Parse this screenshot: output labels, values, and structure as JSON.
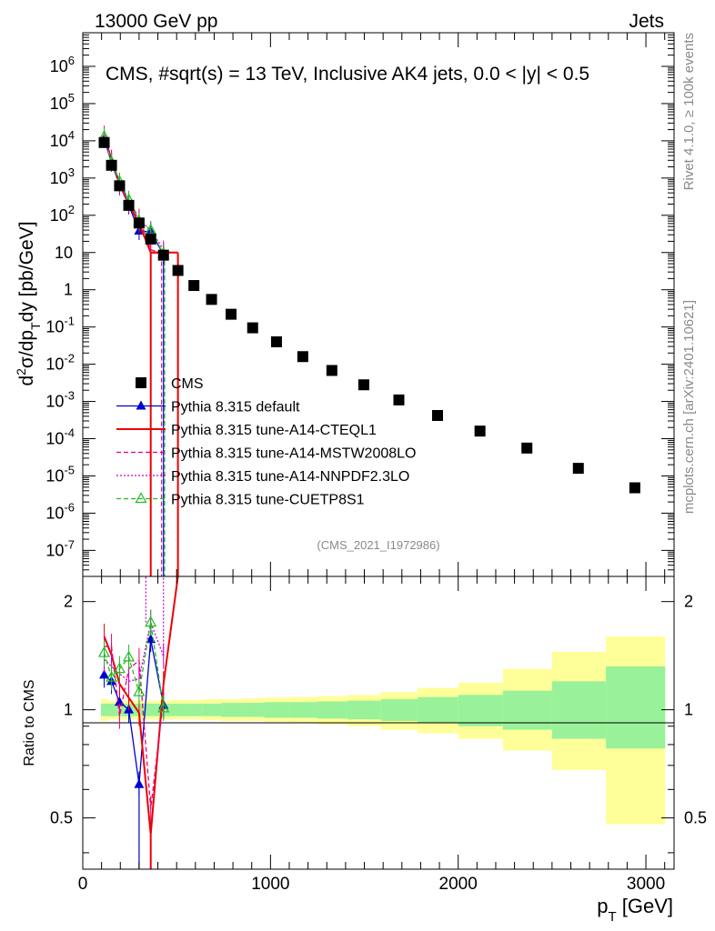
{
  "header": {
    "left": "13000 GeV pp",
    "right": "Jets"
  },
  "side_labels": {
    "rivet": "Rivet 4.1.0, ≥ 100k events",
    "mcplots": "mcplots.cern.ch [arXiv:2401.10621]"
  },
  "chart_data": [
    {
      "type": "scatter",
      "title": "CMS, #sqrt(s) = 13 TeV, Inclusive AK4 jets, 0.0 < |y| < 0.5",
      "analysis_id": "(CMS_2021_I1972986)",
      "xlabel": "p_T [GeV]",
      "ylabel": "d²σ/dp_T dy [pb/GeV]",
      "yscale": "log",
      "xlim": [
        0,
        3150
      ],
      "ylim": [
        2e-08,
        8000000.0
      ],
      "y_tick_labels": [
        "10^-7",
        "10^-6",
        "10^-5",
        "10^-4",
        "10^-3",
        "10^-2",
        "10^-1",
        "1",
        "10",
        "10^2",
        "10^3",
        "10^4",
        "10^5",
        "10^6"
      ],
      "legend_position": "bottom-left",
      "series": [
        {
          "name": "CMS",
          "color": "#000000",
          "style": "square",
          "x": [
            114,
            153,
            196,
            245,
            300,
            362,
            430,
            507,
            592,
            686,
            790,
            905,
            1032,
            1172,
            1327,
            1497,
            1684,
            1890,
            2116,
            2366,
            2640,
            2941
          ],
          "y": [
            9000,
            2200,
            620,
            185,
            62,
            23,
            8.5,
            3.3,
            1.3,
            0.55,
            0.22,
            0.095,
            0.04,
            0.016,
            0.0068,
            0.0028,
            0.0011,
            0.00042,
            0.00016,
            5.6e-05,
            1.6e-05,
            4.8e-06
          ]
        },
        {
          "name": "Pythia 8.315 default",
          "color": "#0000cc",
          "style": "solid-triangle",
          "x": [
            114,
            153,
            196,
            245,
            300,
            362,
            430
          ],
          "y": [
            11300,
            2600,
            650,
            185,
            38,
            36,
            8.8
          ]
        },
        {
          "name": "Pythia 8.315 tune-A14-CTEQL1",
          "color": "#ee0000",
          "style": "solid",
          "x": [
            114,
            153,
            196,
            245,
            300,
            362,
            430
          ],
          "y": [
            14500,
            3100,
            730,
            200,
            60,
            10,
            10
          ]
        },
        {
          "name": "Pythia 8.315 tune-A14-MSTW2008LO",
          "color": "#e8007a",
          "style": "dashed",
          "x": [
            114,
            153,
            196,
            245,
            300,
            362,
            430
          ],
          "y": [
            13500,
            3300,
            600,
            240,
            85,
            12,
            9
          ]
        },
        {
          "name": "Pythia 8.315 tune-A14-NNPDF2.3LO",
          "color": "#cc00cc",
          "style": "dotted",
          "x": [
            114,
            153,
            196,
            245,
            300,
            362,
            430
          ],
          "y": [
            12500,
            2900,
            780,
            220,
            75,
            40,
            12
          ]
        },
        {
          "name": "Pythia 8.315 tune-CUETP8S1",
          "color": "#22bb22",
          "style": "dashed-open-triangle",
          "x": [
            114,
            153,
            196,
            245,
            300,
            362,
            430
          ],
          "y": [
            13000,
            2700,
            800,
            260,
            70,
            40,
            9.3
          ]
        }
      ]
    },
    {
      "type": "line",
      "title": "",
      "xlabel": "p_T [GeV]",
      "ylabel": "Ratio to CMS",
      "yscale": "log",
      "xlim": [
        0,
        3150
      ],
      "ylim": [
        0.36,
        2.35
      ],
      "y_ticks": [
        0.5,
        1,
        2
      ],
      "y_tick_labels": [
        "0.5",
        "1",
        "2"
      ],
      "x_ticks": [
        0,
        1000,
        2000,
        3000
      ],
      "x_tick_labels": [
        "0",
        "1000",
        "2000",
        "3000"
      ],
      "band_edges": [
        97,
        133,
        174,
        220,
        272,
        330,
        395,
        468,
        548,
        638,
        737,
        846,
        967,
        1101,
        1248,
        1410,
        1588,
        1784,
        2000,
        2238,
        2500,
        2787,
        3103
      ],
      "stat_band": [
        [
          0.96,
          1.04
        ],
        [
          0.96,
          1.04
        ],
        [
          0.96,
          1.04
        ],
        [
          0.96,
          1.04
        ],
        [
          0.96,
          1.04
        ],
        [
          0.96,
          1.04
        ],
        [
          0.96,
          1.04
        ],
        [
          0.96,
          1.04
        ],
        [
          0.96,
          1.04
        ],
        [
          0.96,
          1.04
        ],
        [
          0.955,
          1.045
        ],
        [
          0.955,
          1.045
        ],
        [
          0.95,
          1.05
        ],
        [
          0.95,
          1.05
        ],
        [
          0.945,
          1.055
        ],
        [
          0.94,
          1.06
        ],
        [
          0.93,
          1.07
        ],
        [
          0.92,
          1.085
        ],
        [
          0.9,
          1.1
        ],
        [
          0.88,
          1.13
        ],
        [
          0.83,
          1.2
        ],
        [
          0.78,
          1.32
        ]
      ],
      "total_band": [
        [
          0.93,
          1.07
        ],
        [
          0.94,
          1.06
        ],
        [
          0.94,
          1.06
        ],
        [
          0.94,
          1.06
        ],
        [
          0.94,
          1.06
        ],
        [
          0.94,
          1.06
        ],
        [
          0.94,
          1.06
        ],
        [
          0.94,
          1.065
        ],
        [
          0.94,
          1.065
        ],
        [
          0.935,
          1.07
        ],
        [
          0.93,
          1.07
        ],
        [
          0.93,
          1.075
        ],
        [
          0.925,
          1.08
        ],
        [
          0.92,
          1.085
        ],
        [
          0.91,
          1.09
        ],
        [
          0.9,
          1.1
        ],
        [
          0.88,
          1.12
        ],
        [
          0.86,
          1.15
        ],
        [
          0.83,
          1.19
        ],
        [
          0.77,
          1.3
        ],
        [
          0.68,
          1.45
        ],
        [
          0.48,
          1.6
        ]
      ],
      "series": [
        {
          "name": "Pythia 8.315 default",
          "x": [
            114,
            153,
            196,
            245,
            300,
            362,
            430
          ],
          "y": [
            1.25,
            1.2,
            1.05,
            1.0,
            0.62,
            1.57,
            1.03
          ]
        },
        {
          "name": "Pythia 8.315 tune-A14-CTEQL1",
          "x": [
            114,
            153,
            196,
            245,
            300,
            362,
            430
          ],
          "y": [
            1.6,
            1.42,
            1.18,
            1.08,
            0.98,
            0.45,
            1.18
          ]
        },
        {
          "name": "Pythia 8.315 tune-A14-MSTW2008LO",
          "x": [
            114,
            153,
            196,
            245,
            300,
            362,
            430
          ],
          "y": [
            1.5,
            1.5,
            0.96,
            1.3,
            1.37,
            0.53,
            1.07
          ]
        },
        {
          "name": "Pythia 8.315 tune-A14-NNPDF2.3LO",
          "x": [
            114,
            153,
            196,
            245,
            300,
            362,
            430
          ],
          "y": [
            1.38,
            1.32,
            1.26,
            1.2,
            1.22,
            1.75,
            1.41
          ]
        },
        {
          "name": "Pythia 8.315 tune-CUETP8S1",
          "x": [
            114,
            153,
            196,
            245,
            300,
            362,
            430
          ],
          "y": [
            1.44,
            1.23,
            1.3,
            1.4,
            1.12,
            1.75,
            1.01
          ]
        }
      ]
    }
  ]
}
